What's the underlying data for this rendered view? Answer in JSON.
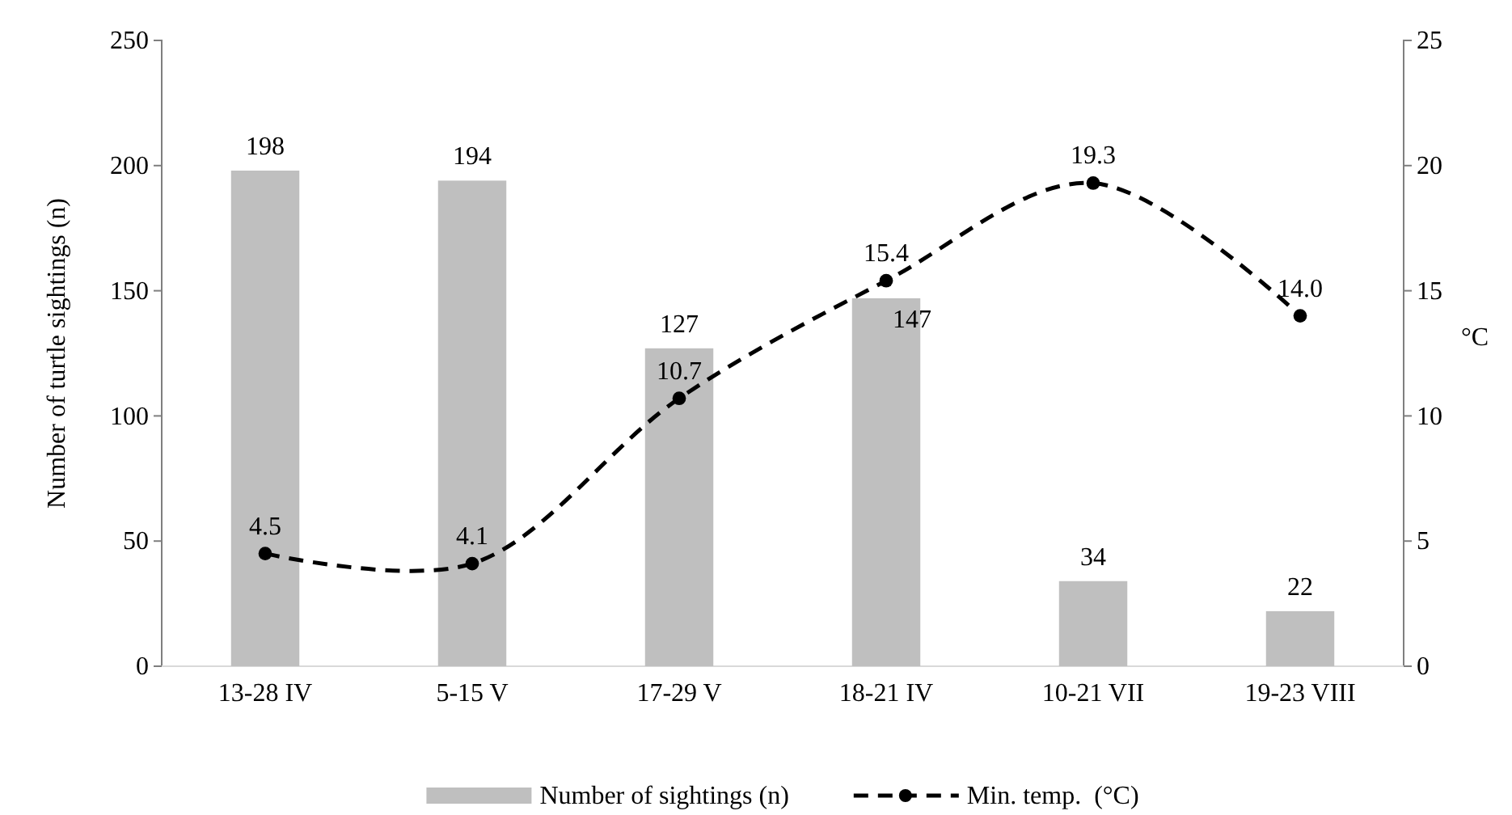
{
  "chart_data": {
    "type": "bar",
    "ylabel": "Number of turtle sightings (n)",
    "y2label": "°C",
    "categories": [
      "13-28 IV",
      "5-15 V",
      "17-29 V",
      "18-21 IV",
      "10-21 VII",
      "19-23 VIII"
    ],
    "series": [
      {
        "name": "Number of sightings (n)",
        "color": "#bfbfbf",
        "values": [
          198,
          194,
          127,
          147,
          34,
          22
        ]
      },
      {
        "name": "Min. temp.  (°C)",
        "type": "line",
        "axis": "y2",
        "color": "#000000",
        "marker": "circle",
        "line_style": "dashed",
        "values": [
          4.5,
          4.1,
          10.7,
          15.4,
          19.3,
          14.0
        ],
        "value_labels": [
          "4.5",
          "4.1",
          "10.7",
          "15.4",
          "19.3",
          "14.0"
        ]
      }
    ],
    "ylim": [
      0,
      250
    ],
    "yticks": [
      0,
      50,
      100,
      150,
      200,
      250
    ],
    "y2lim": [
      0,
      25
    ],
    "y2ticks": [
      0,
      5,
      10,
      15,
      20,
      25
    ],
    "data_labels": true,
    "grid": false,
    "legend": "bottom"
  }
}
